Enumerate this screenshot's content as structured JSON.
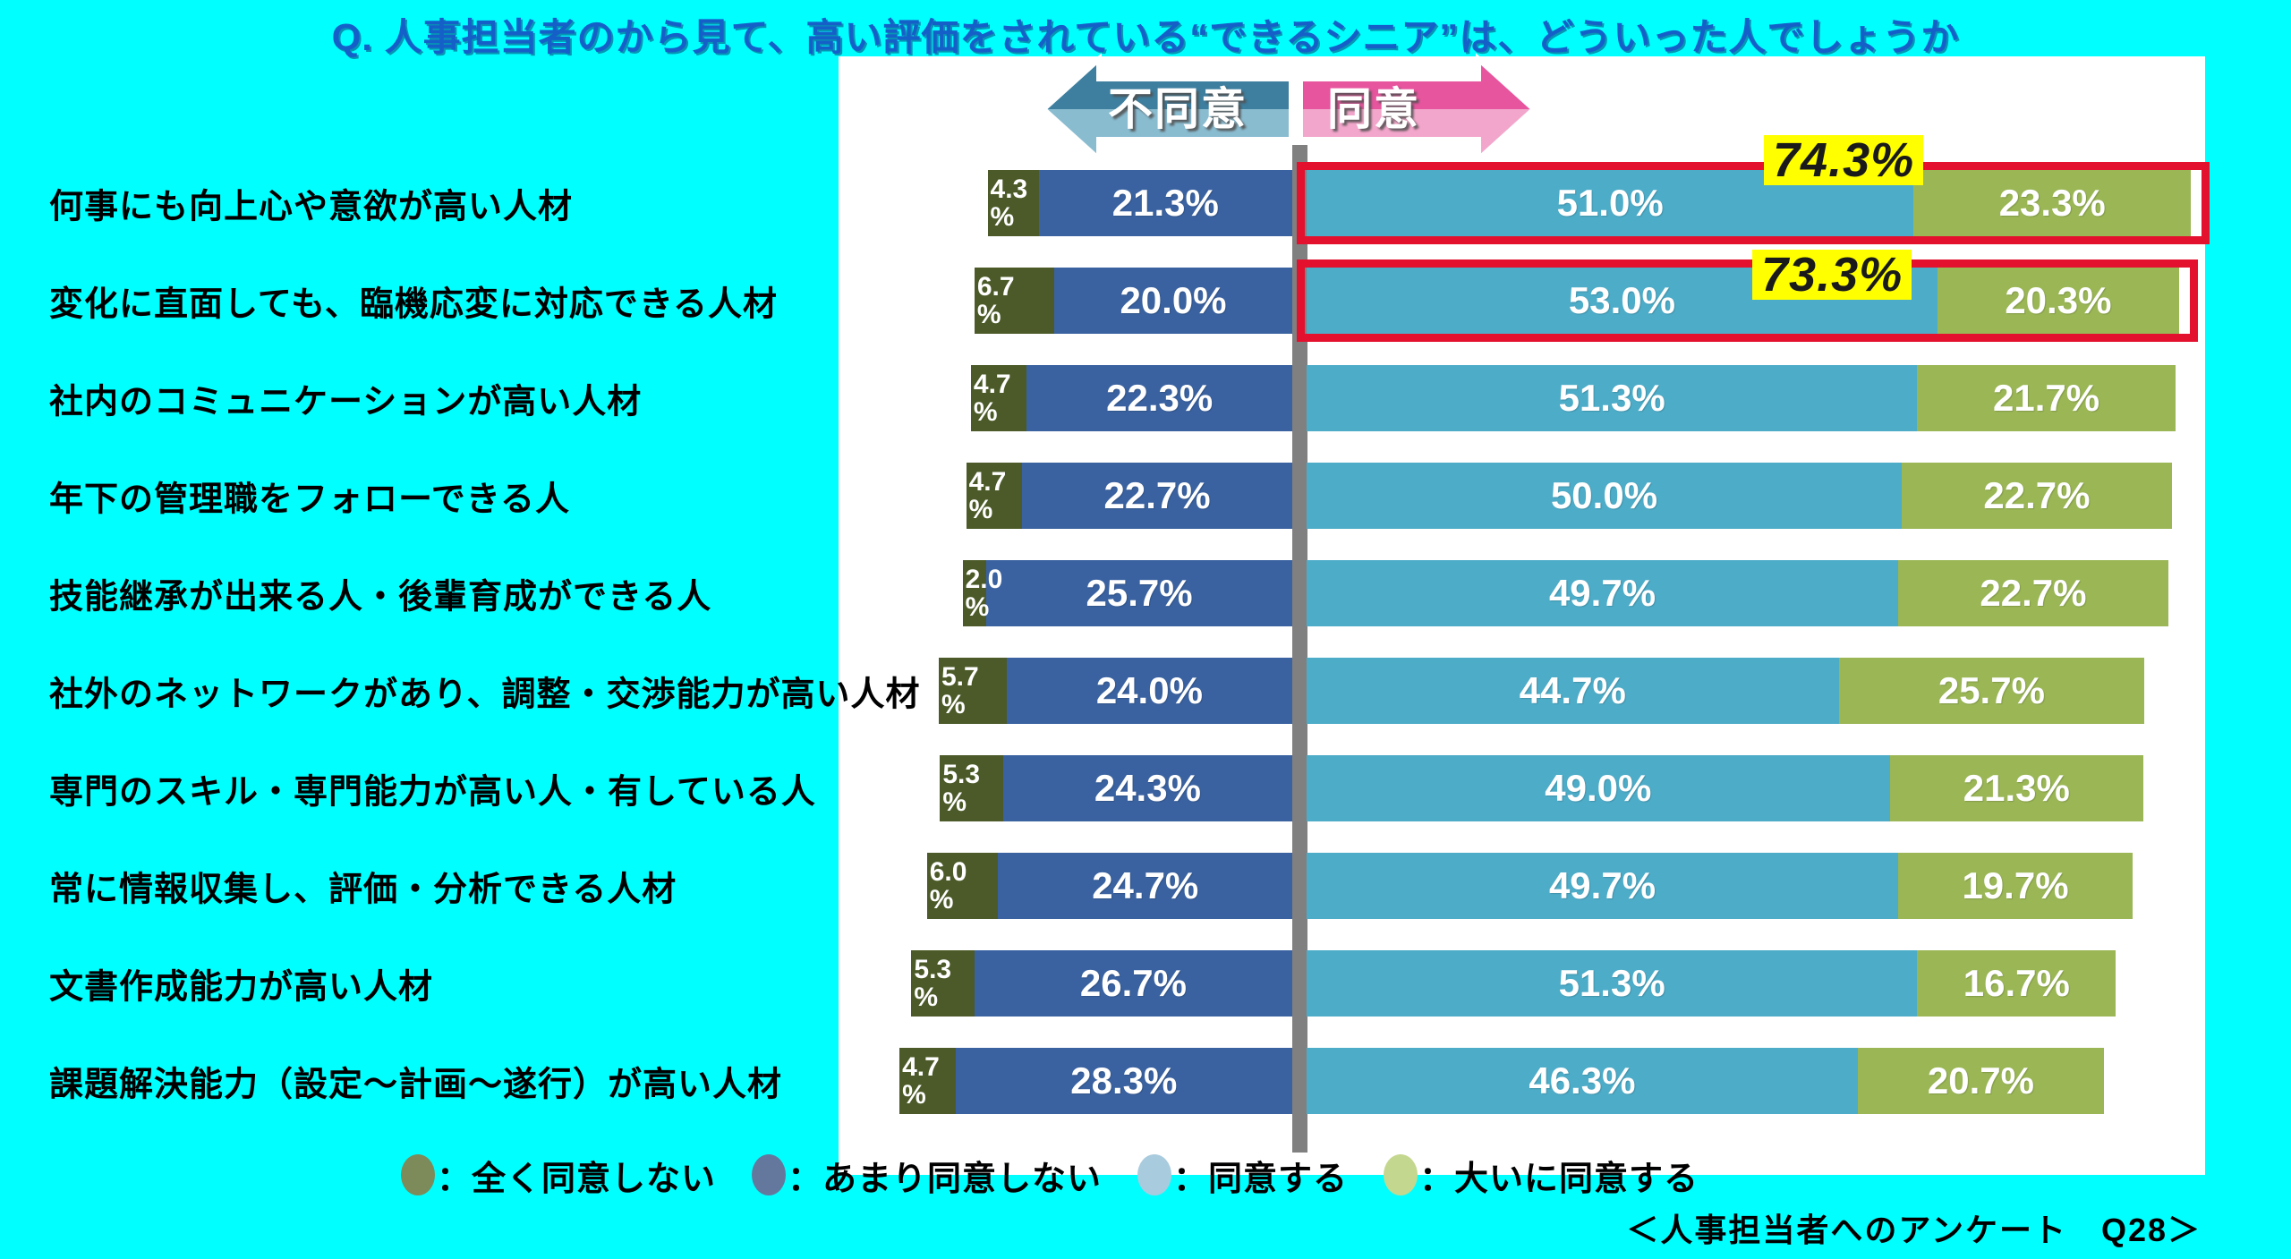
{
  "title": "Q. 人事担当者のから見て、高い評価をされている“できるシニア”は、どういった人でしょうか",
  "arrow": {
    "disagree_label": "不同意",
    "agree_label": "同意"
  },
  "footnote": "＜人事担当者へのアンケート　Q28＞",
  "colors": {
    "background": "#00ffff",
    "panel": "#ffffff",
    "title_blue": "#1560c8",
    "divider_gray": "#808080",
    "highlight_red": "#e3112e",
    "callout_yellow": "#ffff00",
    "arrow_teal_dark": "#3e7e9e",
    "arrow_teal_light": "#8abcd0",
    "arrow_pink_dark": "#e6559e",
    "arrow_pink_light": "#f3a6cb"
  },
  "legend": [
    {
      "label": "：全く同意しない",
      "color": "#7d8a5a"
    },
    {
      "label": "：あまり同意しない",
      "color": "#64789e"
    },
    {
      "label": "：同意する",
      "color": "#a9cbde"
    },
    {
      "label": "：大いに同意する",
      "color": "#c4d78e"
    }
  ],
  "chart_data": {
    "type": "bar",
    "orientation": "horizontal-diverging-stacked",
    "title": "Q. 人事担当者のから見て、高い評価をされている“できるシニア”は、どういった人でしょうか",
    "unit": "%",
    "axis_split": {
      "left": "不同意",
      "right": "同意"
    },
    "categories": [
      "何事にも向上心や意欲が高い人材",
      "変化に直面しても、臨機応変に対応できる人材",
      "社内のコミュニケーションが高い人材",
      "年下の管理職をフォローできる人",
      "技能継承が出来る人・後輩育成ができる人",
      "社外のネットワークがあり、調整・交渉能力が高い人材",
      "専門のスキル・専門能力が高い人・有している人",
      "常に情報収集し、評価・分析できる人材",
      "文書作成能力が高い人材",
      "課題解決能力（設定～計画～遂行）が高い人材"
    ],
    "series": [
      {
        "name": "全く同意しない",
        "side": "disagree",
        "color": "#4b5a28",
        "values": [
          4.3,
          6.7,
          4.7,
          4.7,
          2.0,
          5.7,
          5.3,
          6.0,
          5.3,
          4.7
        ]
      },
      {
        "name": "あまり同意しない",
        "side": "disagree",
        "color": "#3a62a0",
        "values": [
          21.3,
          20.0,
          22.3,
          22.7,
          25.7,
          24.0,
          24.3,
          24.7,
          26.7,
          28.3
        ]
      },
      {
        "name": "同意する",
        "side": "agree",
        "color": "#4dacc8",
        "values": [
          51.0,
          53.0,
          51.3,
          50.0,
          49.7,
          44.7,
          49.0,
          49.7,
          51.3,
          46.3
        ]
      },
      {
        "name": "大いに同意する",
        "side": "agree",
        "color": "#9ab655",
        "values": [
          23.3,
          20.3,
          21.7,
          22.7,
          22.7,
          25.7,
          21.3,
          19.7,
          16.7,
          20.7
        ]
      }
    ],
    "highlights": [
      {
        "row": 0,
        "agree_total_label": "74.3%"
      },
      {
        "row": 1,
        "agree_total_label": "73.3%"
      }
    ]
  }
}
